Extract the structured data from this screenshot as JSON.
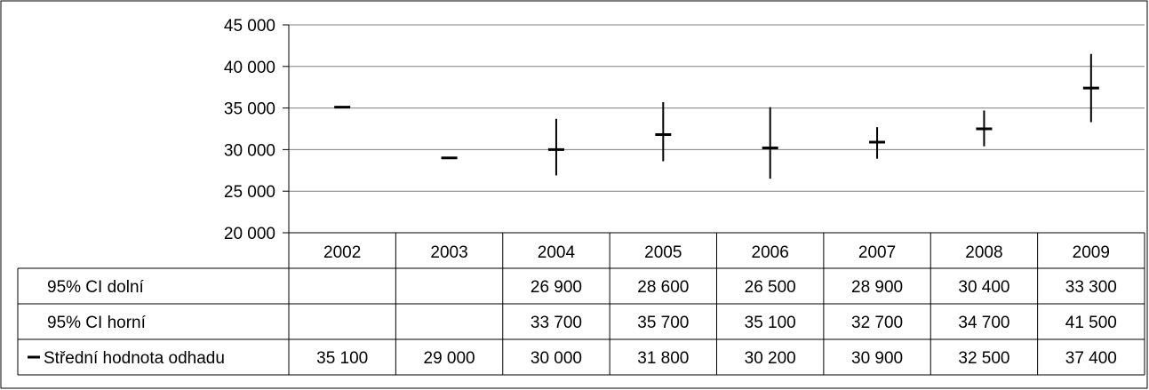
{
  "chart_data": {
    "type": "line",
    "title": "",
    "xlabel": "",
    "ylabel": "",
    "ylim": [
      20000,
      45000
    ],
    "yticks": [
      "20 000",
      "25 000",
      "30 000",
      "35 000",
      "40 000",
      "45 000"
    ],
    "ytick_values": [
      20000,
      25000,
      30000,
      35000,
      40000,
      45000
    ],
    "categories": [
      "2002",
      "2003",
      "2004",
      "2005",
      "2006",
      "2007",
      "2008",
      "2009"
    ],
    "grid": true,
    "legend": "data-table",
    "series": [
      {
        "name": "95% CI dolní",
        "values": [
          null,
          null,
          26900,
          28600,
          26500,
          28900,
          30400,
          33300
        ],
        "labels": [
          "",
          "",
          "26 900",
          "28 600",
          "26 500",
          "28 900",
          "30 400",
          "33 300"
        ]
      },
      {
        "name": "95% CI horní",
        "values": [
          null,
          null,
          33700,
          35700,
          35100,
          32700,
          34700,
          41500
        ],
        "labels": [
          "",
          "",
          "33 700",
          "35 700",
          "35 100",
          "32 700",
          "34 700",
          "41 500"
        ]
      },
      {
        "name": "Střední hodnota odhadu",
        "values": [
          35100,
          29000,
          30000,
          31800,
          30200,
          30900,
          32500,
          37400
        ],
        "labels": [
          "35 100",
          "29 000",
          "30 000",
          "31 800",
          "30 200",
          "30 900",
          "32 500",
          "37 400"
        ]
      }
    ],
    "colors": {
      "marker": "#000000",
      "grid": "#808080",
      "border": "#000000"
    }
  }
}
